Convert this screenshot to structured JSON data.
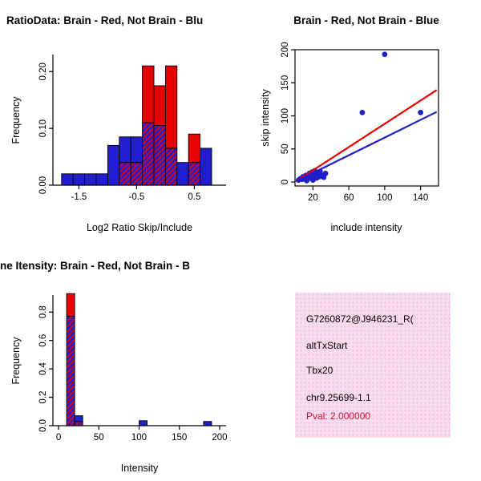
{
  "colors": {
    "red": "#e60000",
    "blue": "#1f1fd0",
    "pval_text": "#cc1133",
    "info_box_bg": "#f9dcee",
    "info_box_dot": "#eebbdd"
  },
  "chart_data": [
    {
      "id": "ratio-histogram",
      "type": "bar",
      "subtype": "overlaid-histogram",
      "title": "RatioData: Brain - Red, Not Brain - Blu",
      "xlabel": "Log2 Ratio Skip/Include",
      "ylabel": "Frequency",
      "xlim": [
        -1.95,
        1.05
      ],
      "ylim": [
        0,
        0.23
      ],
      "xticks": [
        -1.5,
        -0.5,
        0.5
      ],
      "xtick_labels": [
        "-1.5",
        "-0.5",
        "0.5"
      ],
      "yticks": [
        0,
        0.1,
        0.2
      ],
      "ytick_labels": [
        "0.00",
        "0.10",
        "0.20"
      ],
      "series_legend": {
        "red": "Brain",
        "blue": "Not Brain"
      },
      "bins_format": "[x0, x1, blue_freq, red_freq]",
      "bins": [
        [
          -1.8,
          -1.6,
          0.02,
          0
        ],
        [
          -1.6,
          -1.4,
          0.02,
          0
        ],
        [
          -1.4,
          -1.2,
          0.02,
          0
        ],
        [
          -1.2,
          -1.0,
          0.02,
          0
        ],
        [
          -1.0,
          -0.8,
          0.07,
          0
        ],
        [
          -0.8,
          -0.6,
          0.085,
          0.04
        ],
        [
          -0.6,
          -0.4,
          0.085,
          0.04
        ],
        [
          -0.4,
          -0.2,
          0.11,
          0.21
        ],
        [
          -0.2,
          0.0,
          0.105,
          0.175
        ],
        [
          0.0,
          0.2,
          0.065,
          0.21
        ],
        [
          0.2,
          0.4,
          0.04,
          0
        ],
        [
          0.4,
          0.6,
          0.04,
          0.09
        ],
        [
          0.6,
          0.8,
          0.065,
          0
        ]
      ]
    },
    {
      "id": "intensity-scatter",
      "type": "scatter",
      "title": "Brain - Red, Not Brain - Blue",
      "xlabel": "include intensity",
      "ylabel": "skip intensity",
      "xlim": [
        0,
        160
      ],
      "ylim": [
        -6,
        200
      ],
      "xticks": [
        20,
        60,
        100,
        140
      ],
      "xtick_labels": [
        "20",
        "60",
        "100",
        "140"
      ],
      "yticks": [
        0,
        50,
        100,
        150,
        200
      ],
      "ytick_labels": [
        "0",
        "50",
        "100",
        "150",
        "200"
      ],
      "points_blue": [
        [
          4,
          3
        ],
        [
          6,
          5
        ],
        [
          8,
          4
        ],
        [
          9,
          8
        ],
        [
          11,
          6
        ],
        [
          12,
          10
        ],
        [
          13,
          2
        ],
        [
          14,
          4
        ],
        [
          15,
          9
        ],
        [
          16,
          13
        ],
        [
          18,
          7
        ],
        [
          19,
          15
        ],
        [
          20,
          3
        ],
        [
          21,
          10
        ],
        [
          22,
          17
        ],
        [
          24,
          6
        ],
        [
          25,
          12
        ],
        [
          27,
          8
        ],
        [
          28,
          16
        ],
        [
          30,
          10
        ],
        [
          32,
          7
        ],
        [
          34,
          13
        ],
        [
          75,
          105
        ],
        [
          100,
          193
        ],
        [
          140,
          105
        ]
      ],
      "fit_lines": [
        {
          "series": "brain",
          "color": "red",
          "x1": 1,
          "y1": 1,
          "x2": 158,
          "y2": 139
        },
        {
          "series": "not-brain",
          "color": "blue",
          "x1": 1,
          "y1": 1,
          "x2": 158,
          "y2": 106
        }
      ]
    },
    {
      "id": "gene-intensity-histogram",
      "type": "bar",
      "subtype": "overlaid-histogram",
      "title": "ne Itensity: Brain - Red, Not Brain - B",
      "xlabel": "Intensity",
      "ylabel": "Frequency",
      "xlim": [
        -7,
        208
      ],
      "ylim": [
        0,
        0.92
      ],
      "xticks": [
        0,
        50,
        100,
        150,
        200
      ],
      "xtick_labels": [
        "0",
        "50",
        "100",
        "150",
        "200"
      ],
      "yticks": [
        0,
        0.2,
        0.4,
        0.6,
        0.8
      ],
      "ytick_labels": [
        "0.0",
        "0.2",
        "0.4",
        "0.6",
        "0.8"
      ],
      "bins_format": "[x0, x1, blue_freq, red_freq]",
      "bins": [
        [
          10,
          20,
          0.77,
          0.93
        ],
        [
          20,
          30,
          0.07,
          0.03
        ],
        [
          100,
          110,
          0.035,
          0
        ],
        [
          180,
          190,
          0.03,
          0
        ]
      ]
    }
  ],
  "info_box": {
    "lines": [
      "G7260872@J946231_R(",
      "altTxStart",
      "Tbx20",
      "chr9.25699-1.1"
    ],
    "pval_label": "Pval: 2.000000"
  }
}
